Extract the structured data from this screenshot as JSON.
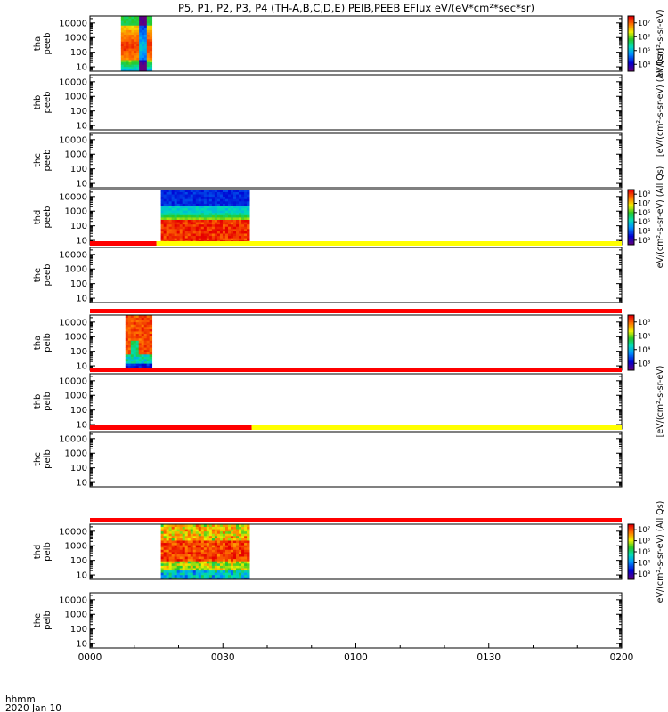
{
  "chart_data": {
    "type": "heatmap",
    "title": "P5, P1, P2, P3, P4 (TH-A,B,C,D,E) PEIB,PEEB EFlux eV/(eV*cm²*sec*sr)",
    "date_label": "2020 Jan 10",
    "x_unit_label": "hhmm",
    "x_ticks": [
      "0000",
      "0030",
      "0100",
      "0130",
      "0200"
    ],
    "x_range_minutes": [
      0,
      120
    ],
    "y_scale": "log",
    "y_ticks": [
      "10",
      "100",
      "1000",
      "10000"
    ],
    "y_range": [
      5,
      30000
    ],
    "status_bar_colors": {
      "red": "#ff0000",
      "yellow": "#ffff00"
    },
    "panels": [
      {
        "probe": "tha",
        "species": "peeb",
        "data_start_min": 7,
        "data_end_min": 14,
        "style": "electron_a",
        "colorbar": {
          "ticks": [
            "10⁴",
            "10⁵",
            "10⁶",
            "10⁷"
          ],
          "label": "eV/(cm²-s-sr-eV)"
        }
      },
      {
        "probe": "thb",
        "species": "peeb",
        "label": "[eV/(cm²-s-sr-eV) (All Qs)]"
      },
      {
        "probe": "thc",
        "species": "peeb"
      },
      {
        "probe": "thd",
        "species": "peeb",
        "data_start_min": 16,
        "data_end_min": 36,
        "style": "electron_d",
        "colorbar": {
          "ticks": [
            "10³",
            "10⁴",
            "10⁵",
            "10⁶",
            "10⁷",
            "10⁸"
          ],
          "label": "eV/(cm²-s-sr-eV) (All Qs)"
        }
      },
      {
        "probe": "the",
        "species": "peeb",
        "status_bar": [
          {
            "start_min": 0,
            "end_min": 15,
            "color": "red"
          },
          {
            "start_min": 15,
            "end_min": 120,
            "color": "yellow"
          }
        ]
      },
      {
        "probe": "tha",
        "species": "peib",
        "data_start_min": 8,
        "data_end_min": 14,
        "style": "ion_a",
        "colorbar": {
          "ticks": [
            "10³",
            "10⁴",
            "10⁵",
            "10⁶"
          ]
        },
        "status_bar": [
          {
            "start_min": 0,
            "end_min": 120,
            "color": "red"
          }
        ]
      },
      {
        "probe": "thb",
        "species": "peib",
        "label": "[eV/(cm²-s-sr-eV)",
        "status_bar": [
          {
            "start_min": 0,
            "end_min": 120,
            "color": "red"
          }
        ]
      },
      {
        "probe": "thc",
        "species": "peib",
        "status_bar": [
          {
            "start_min": 0,
            "end_min": 36.5,
            "color": "red"
          },
          {
            "start_min": 36.5,
            "end_min": 120,
            "color": "yellow"
          }
        ]
      },
      {
        "probe": "thd",
        "species": "peib",
        "data_start_min": 16,
        "data_end_min": 36,
        "style": "ion_d",
        "colorbar": {
          "ticks": [
            "10³",
            "10⁴",
            "10⁵",
            "10⁶",
            "10⁷"
          ],
          "label": "eV/(cm²-s-sr-eV) (All Qs)"
        },
        "status_bar": [
          {
            "start_min": 0,
            "end_min": 120,
            "color": "red"
          }
        ]
      },
      {
        "probe": "the",
        "species": "peib"
      }
    ]
  }
}
